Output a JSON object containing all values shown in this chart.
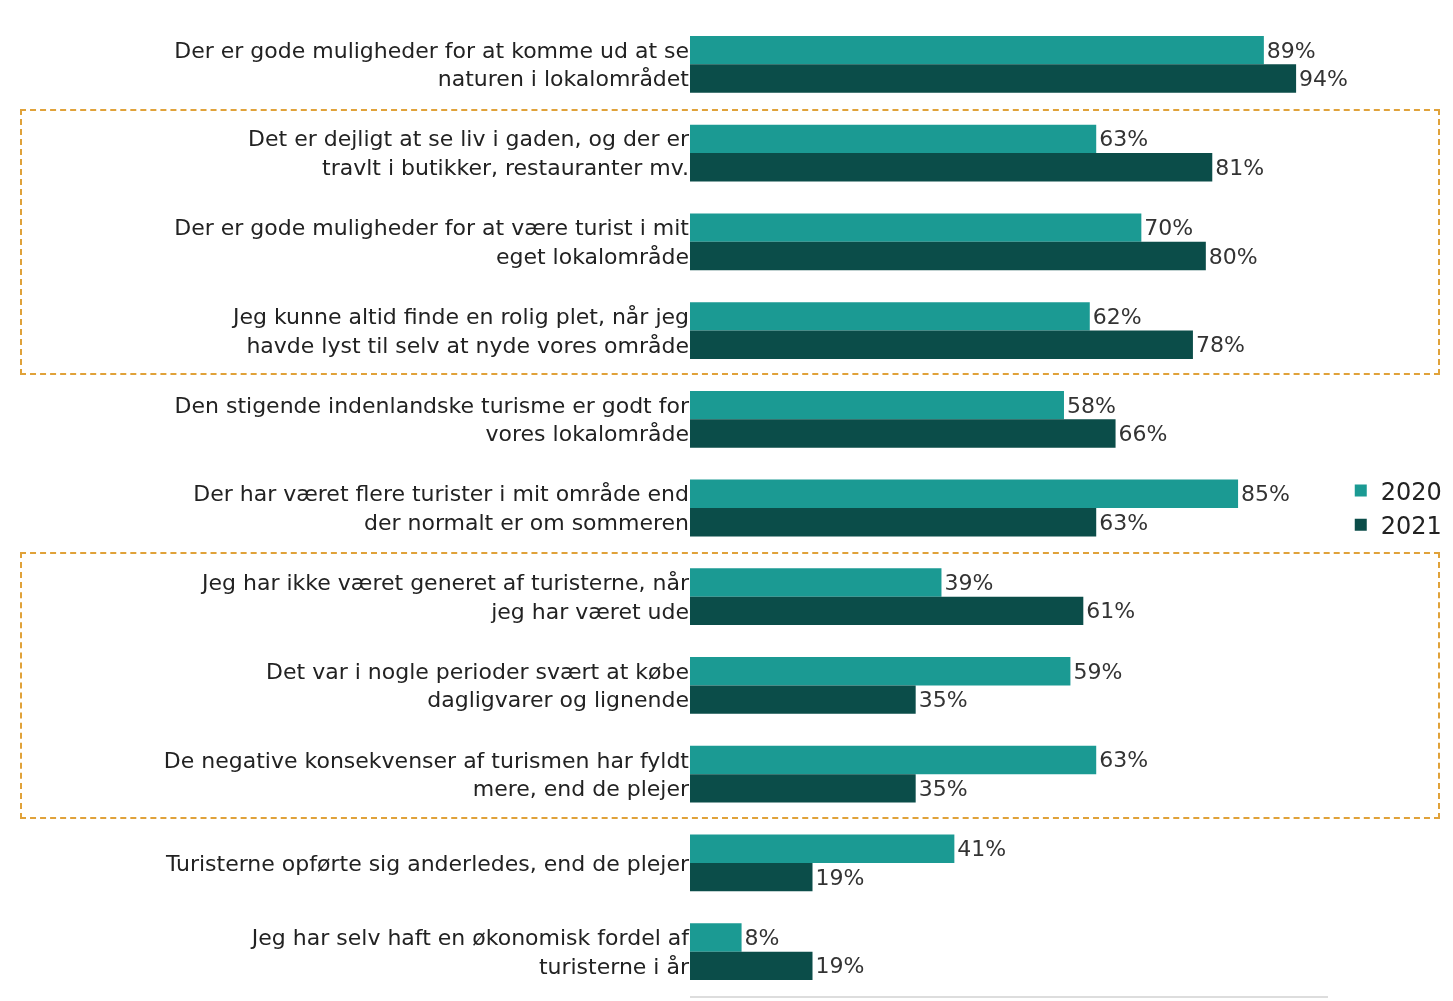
{
  "chart_data": {
    "type": "bar",
    "orientation": "horizontal",
    "categories": [
      "Der er gode muligheder for at komme ud at se naturen i lokalområdet",
      "Det er dejligt at se liv i gaden, og der er travlt i butikker, restauranter mv.",
      "Der er gode muligheder for at være turist i mit eget lokalområde",
      "Jeg kunne altid finde en rolig plet, når jeg havde lyst til selv at nyde vores område",
      "Den stigende indenlandske turisme er godt for vores lokalområde",
      "Der har været flere turister i mit område end der normalt er om sommeren",
      "Jeg har ikke været generet af turisterne, når jeg har været ude",
      "Det var i nogle perioder svært at købe dagligvarer og lignende",
      "De negative konsekvenser af turismen har fyldt mere, end de plejer",
      "Turisterne opførte sig anderledes, end de plejer",
      "Jeg har selv haft en økonomisk fordel af turisterne i år"
    ],
    "series": [
      {
        "name": "2020",
        "color": "#1b9a93",
        "values": [
          89,
          63,
          70,
          62,
          58,
          85,
          39,
          59,
          63,
          41,
          8
        ],
        "value_labels": [
          "89%",
          "63%",
          "70%",
          "62%",
          "58%",
          "85%",
          "39%",
          "59%",
          "63%",
          "41%",
          "8%"
        ]
      },
      {
        "name": "2021",
        "color": "#0b4d49",
        "values": [
          94,
          81,
          80,
          78,
          66,
          63,
          61,
          35,
          35,
          19,
          19
        ],
        "value_labels": [
          "94%",
          "81%",
          "80%",
          "78%",
          "66%",
          "63%",
          "61%",
          "35%",
          "35%",
          "19%",
          "19%"
        ]
      }
    ],
    "legend": "right",
    "tick_labels": "y",
    "grid": false
  }
}
